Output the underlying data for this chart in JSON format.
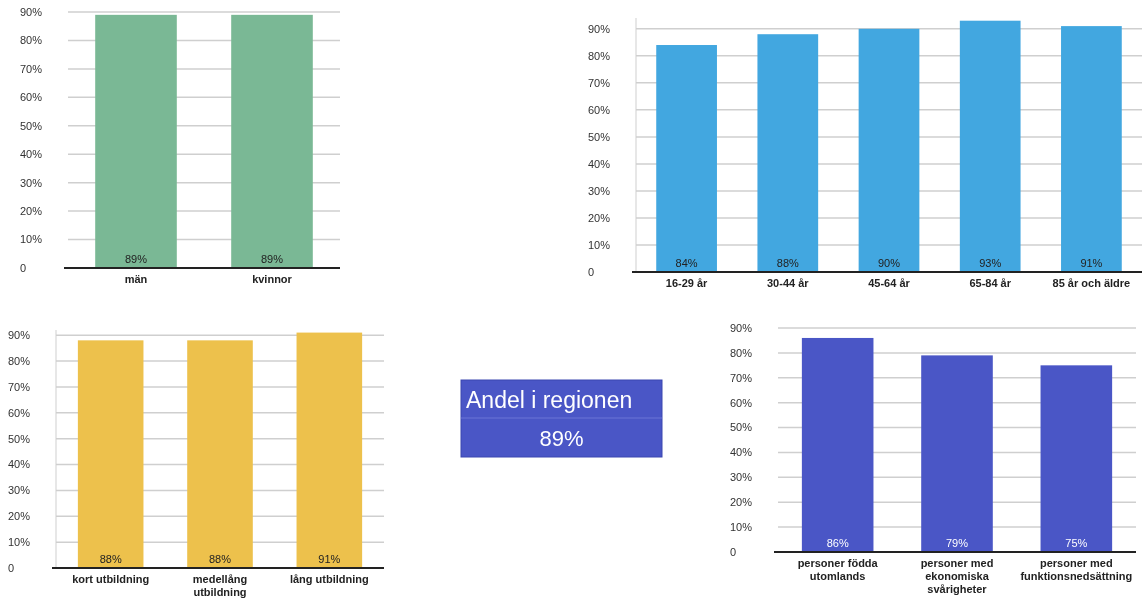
{
  "chart_data": [
    {
      "type": "bar",
      "categories": [
        "män",
        "kvinnor"
      ],
      "values": [
        89,
        89
      ],
      "value_labels": [
        "89%",
        "89%"
      ],
      "color": "#7ab895",
      "ylim": [
        0,
        90
      ],
      "yticks": [
        {
          "value": 0,
          "label": "0"
        },
        {
          "value": 10,
          "label": "10%"
        },
        {
          "value": 20,
          "label": "20%"
        },
        {
          "value": 30,
          "label": "30%"
        },
        {
          "value": 40,
          "label": "40%"
        },
        {
          "value": 50,
          "label": "50%"
        },
        {
          "value": 60,
          "label": "60%"
        },
        {
          "value": 70,
          "label": "70%"
        },
        {
          "value": 80,
          "label": "80%"
        },
        {
          "value": 90,
          "label": "90%"
        }
      ],
      "grid": "y",
      "legend": false
    },
    {
      "type": "bar",
      "categories": [
        "16-29 år",
        "30-44 år",
        "45-64 år",
        "65-84 år",
        "85 år och äldre"
      ],
      "values": [
        84,
        88,
        90,
        93,
        91
      ],
      "value_labels": [
        "84%",
        "88%",
        "90%",
        "93%",
        "91%"
      ],
      "color": "#42a7e0",
      "ylim": [
        0,
        94
      ],
      "yticks": [
        {
          "value": 0,
          "label": "0"
        },
        {
          "value": 10,
          "label": "10%"
        },
        {
          "value": 20,
          "label": "20%"
        },
        {
          "value": 30,
          "label": "30%"
        },
        {
          "value": 40,
          "label": "40%"
        },
        {
          "value": 50,
          "label": "50%"
        },
        {
          "value": 60,
          "label": "60%"
        },
        {
          "value": 70,
          "label": "70%"
        },
        {
          "value": 80,
          "label": "80%"
        },
        {
          "value": 90,
          "label": "90%"
        }
      ],
      "grid": "y",
      "legend": false
    },
    {
      "type": "bar",
      "categories": [
        "kort utbildning",
        "medellång utbildning",
        "lång utbildning"
      ],
      "values": [
        88,
        88,
        91
      ],
      "value_labels": [
        "88%",
        "88%",
        "91%"
      ],
      "color": "#edc14c",
      "ylim": [
        0,
        92
      ],
      "yticks": [
        {
          "value": 0,
          "label": "0"
        },
        {
          "value": 10,
          "label": "10%"
        },
        {
          "value": 20,
          "label": "20%"
        },
        {
          "value": 30,
          "label": "30%"
        },
        {
          "value": 40,
          "label": "40%"
        },
        {
          "value": 50,
          "label": "50%"
        },
        {
          "value": 60,
          "label": "60%"
        },
        {
          "value": 70,
          "label": "70%"
        },
        {
          "value": 80,
          "label": "80%"
        },
        {
          "value": 90,
          "label": "90%"
        }
      ],
      "grid": "y",
      "legend": false
    },
    {
      "type": "other",
      "title": "Andel i regionen",
      "annotations": [
        "89%"
      ],
      "color": "#4a56c6"
    },
    {
      "type": "bar",
      "categories": [
        "personer födda utomlands",
        "personer med ekonomiska svårigheter",
        "personer med funktionsnedsättning"
      ],
      "values": [
        86,
        79,
        75
      ],
      "value_labels": [
        "86%",
        "79%",
        "75%"
      ],
      "color": "#4a56c6",
      "ylim": [
        0,
        90
      ],
      "yticks": [
        {
          "value": 0,
          "label": "0"
        },
        {
          "value": 10,
          "label": "10%"
        },
        {
          "value": 20,
          "label": "20%"
        },
        {
          "value": 30,
          "label": "30%"
        },
        {
          "value": 40,
          "label": "40%"
        },
        {
          "value": 50,
          "label": "50%"
        },
        {
          "value": 60,
          "label": "60%"
        },
        {
          "value": 70,
          "label": "70%"
        },
        {
          "value": 80,
          "label": "80%"
        },
        {
          "value": 90,
          "label": "90%"
        }
      ],
      "grid": "y",
      "legend": false
    }
  ]
}
